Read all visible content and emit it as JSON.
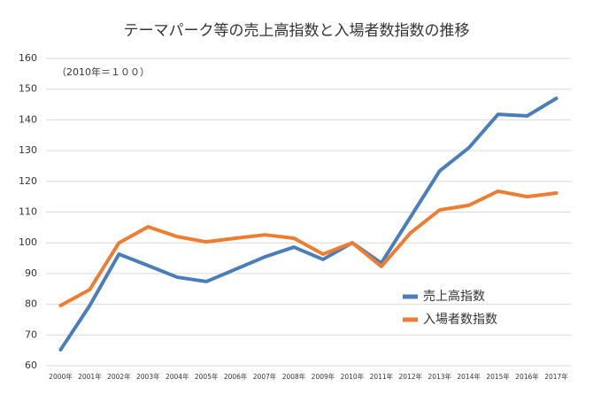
{
  "chart_data": {
    "type": "line",
    "title": "テーマパーク等の売上高指数と入場者数指数の推移",
    "annotation": "（2010年＝１００）",
    "categories": [
      "2000年",
      "2001年",
      "2002年",
      "2003年",
      "2004年",
      "2005年",
      "2006年",
      "2007年",
      "2008年",
      "2009年",
      "2010年",
      "2011年",
      "2012年",
      "2013年",
      "2014年",
      "2015年",
      "2016年",
      "2017年"
    ],
    "series": [
      {
        "name": "売上高指数",
        "color": "#4a7ebb",
        "values": [
          65.2,
          79.6,
          96.3,
          92.6,
          88.8,
          87.4,
          91.4,
          95.4,
          98.6,
          94.6,
          100,
          93.4,
          108.4,
          123.4,
          130.9,
          141.8,
          141.3,
          147
        ]
      },
      {
        "name": "入場者数指数",
        "color": "#ed7d31",
        "values": [
          79.6,
          84.8,
          100,
          105.2,
          102,
          100.3,
          101.5,
          102.6,
          101.5,
          96.3,
          100,
          92.3,
          103.2,
          110.7,
          112.2,
          116.8,
          115,
          116.2
        ]
      }
    ],
    "ylim": [
      60,
      160
    ],
    "yticks": [
      60,
      70,
      80,
      90,
      100,
      110,
      120,
      130,
      140,
      150,
      160
    ],
    "grid": true
  }
}
